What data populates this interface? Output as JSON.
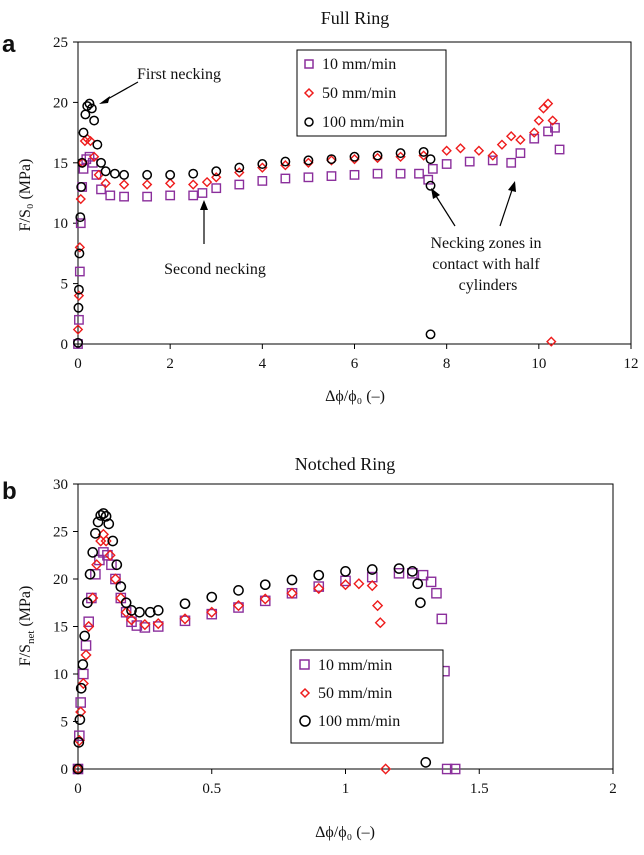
{
  "chart_data": [
    {
      "panel_label": "a",
      "type": "scatter",
      "title": "Full Ring",
      "xlabel": "Δϕ/ϕ₀ (–)",
      "ylabel": "F/S₀ (MPa)",
      "xlim": [
        0,
        12
      ],
      "ylim": [
        0,
        25
      ],
      "x_ticks": [
        "0",
        "2",
        "4",
        "6",
        "8",
        "10",
        "12"
      ],
      "y_ticks": [
        "0",
        "5",
        "10",
        "15",
        "20",
        "25"
      ],
      "grid": false,
      "legend_placement": "top-center",
      "series": [
        {
          "name": "10 mm/min",
          "marker": "square",
          "color": "#8b2f9c",
          "points": [
            [
              0,
              0
            ],
            [
              0.02,
              2
            ],
            [
              0.04,
              6
            ],
            [
              0.06,
              10
            ],
            [
              0.09,
              13
            ],
            [
              0.12,
              14.5
            ],
            [
              0.18,
              15.3
            ],
            [
              0.25,
              15.5
            ],
            [
              0.32,
              15
            ],
            [
              0.4,
              14
            ],
            [
              0.5,
              12.8
            ],
            [
              0.7,
              12.3
            ],
            [
              1.0,
              12.2
            ],
            [
              1.5,
              12.2
            ],
            [
              2.0,
              12.3
            ],
            [
              2.5,
              12.3
            ],
            [
              2.7,
              12.5
            ],
            [
              3.0,
              12.9
            ],
            [
              3.5,
              13.2
            ],
            [
              4.0,
              13.5
            ],
            [
              4.5,
              13.7
            ],
            [
              5.0,
              13.8
            ],
            [
              5.5,
              13.9
            ],
            [
              6.0,
              14.0
            ],
            [
              6.5,
              14.1
            ],
            [
              7.0,
              14.1
            ],
            [
              7.4,
              14.1
            ],
            [
              7.6,
              13.6
            ],
            [
              7.7,
              14.5
            ],
            [
              8.0,
              14.9
            ],
            [
              8.5,
              15.1
            ],
            [
              9.0,
              15.2
            ],
            [
              9.4,
              15.0
            ],
            [
              9.6,
              15.8
            ],
            [
              9.9,
              17.0
            ],
            [
              10.2,
              17.6
            ],
            [
              10.35,
              17.9
            ],
            [
              10.45,
              16.1
            ]
          ]
        },
        {
          "name": "50 mm/min",
          "marker": "diamond",
          "color": "#ee1c1c",
          "points": [
            [
              0,
              1.2
            ],
            [
              0.02,
              4
            ],
            [
              0.04,
              8
            ],
            [
              0.06,
              12
            ],
            [
              0.1,
              15
            ],
            [
              0.15,
              16.8
            ],
            [
              0.2,
              17
            ],
            [
              0.27,
              16.8
            ],
            [
              0.35,
              15.5
            ],
            [
              0.45,
              14
            ],
            [
              0.6,
              13.3
            ],
            [
              1.0,
              13.2
            ],
            [
              1.5,
              13.2
            ],
            [
              2.0,
              13.3
            ],
            [
              2.5,
              13.2
            ],
            [
              2.8,
              13.4
            ],
            [
              3.0,
              13.8
            ],
            [
              3.5,
              14.2
            ],
            [
              4.0,
              14.6
            ],
            [
              4.5,
              14.8
            ],
            [
              5.0,
              15.0
            ],
            [
              5.5,
              15.2
            ],
            [
              6.0,
              15.3
            ],
            [
              6.5,
              15.4
            ],
            [
              7.0,
              15.5
            ],
            [
              7.5,
              15.6
            ],
            [
              8.0,
              16.0
            ],
            [
              8.3,
              16.2
            ],
            [
              8.7,
              16.0
            ],
            [
              9.0,
              15.6
            ],
            [
              9.2,
              16.5
            ],
            [
              9.4,
              17.2
            ],
            [
              9.6,
              16.9
            ],
            [
              9.9,
              17.5
            ],
            [
              10.0,
              18.5
            ],
            [
              10.1,
              19.5
            ],
            [
              10.2,
              19.9
            ],
            [
              10.3,
              18.5
            ],
            [
              10.27,
              0.2
            ]
          ]
        },
        {
          "name": "100 mm/min",
          "marker": "circle",
          "color": "#000000",
          "points": [
            [
              0,
              0.1
            ],
            [
              0.01,
              3
            ],
            [
              0.02,
              4.5
            ],
            [
              0.03,
              7.5
            ],
            [
              0.05,
              10.5
            ],
            [
              0.07,
              13
            ],
            [
              0.09,
              15
            ],
            [
              0.12,
              17.5
            ],
            [
              0.16,
              19
            ],
            [
              0.2,
              19.7
            ],
            [
              0.25,
              19.9
            ],
            [
              0.3,
              19.5
            ],
            [
              0.35,
              18.5
            ],
            [
              0.42,
              16.5
            ],
            [
              0.5,
              15
            ],
            [
              0.6,
              14.3
            ],
            [
              0.8,
              14.1
            ],
            [
              1.0,
              14.0
            ],
            [
              1.5,
              14.0
            ],
            [
              2.0,
              14.0
            ],
            [
              2.5,
              14.1
            ],
            [
              3.0,
              14.3
            ],
            [
              3.5,
              14.6
            ],
            [
              4.0,
              14.9
            ],
            [
              4.5,
              15.1
            ],
            [
              5.0,
              15.2
            ],
            [
              5.5,
              15.3
            ],
            [
              6.0,
              15.5
            ],
            [
              6.5,
              15.6
            ],
            [
              7.0,
              15.8
            ],
            [
              7.5,
              15.9
            ],
            [
              7.65,
              15.3
            ],
            [
              7.65,
              13.1
            ],
            [
              7.65,
              0.8
            ]
          ]
        }
      ],
      "annotations": [
        "First necking",
        "Second necking",
        "Necking zones in contact with half cylinders"
      ]
    },
    {
      "panel_label": "b",
      "type": "scatter",
      "title": "Notched Ring",
      "xlabel": "Δϕ/ϕ₀ (–)",
      "ylabel": "F/S_net (MPa)",
      "ylabel_main": "F/S",
      "ylabel_sub": "net",
      "ylabel_tail": " (MPa)",
      "xlim": [
        0,
        2
      ],
      "ylim": [
        0,
        30
      ],
      "x_ticks": [
        "0",
        "0.5",
        "1",
        "1.5",
        "2"
      ],
      "y_ticks": [
        "0",
        "5",
        "10",
        "15",
        "20",
        "25",
        "30"
      ],
      "grid": false,
      "legend_placement": "bottom-center",
      "series": [
        {
          "name": "10 mm/min",
          "marker": "square",
          "color": "#8b2f9c",
          "points": [
            [
              0,
              0
            ],
            [
              0.005,
              3.5
            ],
            [
              0.01,
              7
            ],
            [
              0.02,
              10
            ],
            [
              0.03,
              13
            ],
            [
              0.04,
              15.5
            ],
            [
              0.05,
              18
            ],
            [
              0.065,
              20.5
            ],
            [
              0.08,
              22
            ],
            [
              0.095,
              22.8
            ],
            [
              0.11,
              22.5
            ],
            [
              0.125,
              21.5
            ],
            [
              0.14,
              20
            ],
            [
              0.16,
              18
            ],
            [
              0.18,
              16.5
            ],
            [
              0.2,
              15.5
            ],
            [
              0.22,
              15.1
            ],
            [
              0.25,
              14.9
            ],
            [
              0.3,
              15.0
            ],
            [
              0.4,
              15.6
            ],
            [
              0.5,
              16.3
            ],
            [
              0.6,
              17.0
            ],
            [
              0.7,
              17.7
            ],
            [
              0.8,
              18.5
            ],
            [
              0.9,
              19.2
            ],
            [
              1.0,
              19.8
            ],
            [
              1.1,
              20.2
            ],
            [
              1.2,
              20.6
            ],
            [
              1.25,
              20.6
            ],
            [
              1.29,
              20.4
            ],
            [
              1.32,
              19.7
            ],
            [
              1.34,
              18.5
            ],
            [
              1.36,
              15.8
            ],
            [
              1.37,
              10.3
            ],
            [
              1.38,
              0
            ],
            [
              1.41,
              0
            ]
          ]
        },
        {
          "name": "50 mm/min",
          "marker": "diamond",
          "color": "#ee1c1c",
          "points": [
            [
              0,
              0
            ],
            [
              0.005,
              3
            ],
            [
              0.01,
              6
            ],
            [
              0.02,
              9
            ],
            [
              0.03,
              12
            ],
            [
              0.04,
              15
            ],
            [
              0.055,
              18
            ],
            [
              0.07,
              21.5
            ],
            [
              0.085,
              24
            ],
            [
              0.095,
              24.7
            ],
            [
              0.105,
              24
            ],
            [
              0.12,
              22.5
            ],
            [
              0.14,
              20
            ],
            [
              0.16,
              18
            ],
            [
              0.18,
              16.5
            ],
            [
              0.2,
              15.7
            ],
            [
              0.25,
              15.2
            ],
            [
              0.3,
              15.3
            ],
            [
              0.4,
              15.8
            ],
            [
              0.5,
              16.5
            ],
            [
              0.6,
              17.2
            ],
            [
              0.7,
              17.9
            ],
            [
              0.8,
              18.5
            ],
            [
              0.9,
              19.0
            ],
            [
              1.0,
              19.4
            ],
            [
              1.05,
              19.5
            ],
            [
              1.1,
              19.3
            ],
            [
              1.12,
              17.2
            ],
            [
              1.13,
              15.4
            ],
            [
              1.15,
              0
            ]
          ]
        },
        {
          "name": "100 mm/min",
          "marker": "circle",
          "color": "#000000",
          "points": [
            [
              0,
              0
            ],
            [
              0.003,
              2.8
            ],
            [
              0.007,
              5.2
            ],
            [
              0.012,
              8.5
            ],
            [
              0.018,
              11
            ],
            [
              0.025,
              14
            ],
            [
              0.035,
              17.5
            ],
            [
              0.045,
              20.5
            ],
            [
              0.055,
              22.8
            ],
            [
              0.065,
              24.8
            ],
            [
              0.075,
              26
            ],
            [
              0.085,
              26.7
            ],
            [
              0.095,
              26.9
            ],
            [
              0.105,
              26.6
            ],
            [
              0.115,
              25.8
            ],
            [
              0.13,
              24
            ],
            [
              0.145,
              21.5
            ],
            [
              0.16,
              19.2
            ],
            [
              0.18,
              17.5
            ],
            [
              0.2,
              16.7
            ],
            [
              0.23,
              16.5
            ],
            [
              0.27,
              16.5
            ],
            [
              0.3,
              16.7
            ],
            [
              0.4,
              17.4
            ],
            [
              0.5,
              18.1
            ],
            [
              0.6,
              18.8
            ],
            [
              0.7,
              19.4
            ],
            [
              0.8,
              19.9
            ],
            [
              0.9,
              20.4
            ],
            [
              1.0,
              20.8
            ],
            [
              1.1,
              21.0
            ],
            [
              1.2,
              21.1
            ],
            [
              1.25,
              20.8
            ],
            [
              1.27,
              19.5
            ],
            [
              1.28,
              17.5
            ],
            [
              1.3,
              0.7
            ]
          ]
        }
      ],
      "annotations": []
    }
  ]
}
